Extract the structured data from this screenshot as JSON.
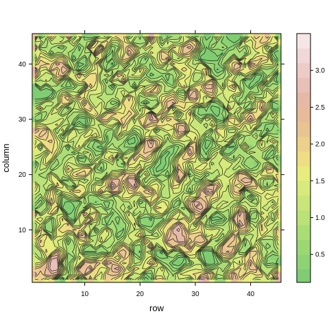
{
  "chart_data": {
    "type": "heatmap",
    "subtype": "contourplot",
    "xlabel": "row",
    "ylabel": "column",
    "xlim": [
      0.5,
      45.5
    ],
    "ylim": [
      0.5,
      45.5
    ],
    "x_ticks": [
      10,
      20,
      30,
      40
    ],
    "y_ticks": [
      10,
      20,
      30,
      40
    ],
    "x": [
      1,
      45
    ],
    "y": [
      1,
      45
    ],
    "value_range": [
      0.12,
      3.5
    ],
    "colorkey": {
      "ticks": [
        0.5,
        1.0,
        1.5,
        2.0,
        2.5,
        3.0
      ],
      "tick_labels": [
        "0.5",
        "1.0",
        "1.5",
        "2.0",
        "2.5",
        "3.0"
      ],
      "range": [
        0.12,
        3.5
      ],
      "levels": [
        0.12,
        0.3,
        0.5,
        0.7,
        0.9,
        1.1,
        1.3,
        1.5,
        1.7,
        1.9,
        2.1,
        2.3,
        2.5,
        2.7,
        2.9,
        3.1,
        3.3,
        3.5
      ],
      "colors": [
        "#7fcc72",
        "#8dd273",
        "#9bd874",
        "#aadd75",
        "#b9e277",
        "#c8e679",
        "#d7ea7b",
        "#e6ed7c",
        "#eedd83",
        "#ecd08b",
        "#e9c492",
        "#e7bb99",
        "#e6b8a6",
        "#e9c0b6",
        "#edcbc6",
        "#f1d8d6",
        "#f6e7e7",
        "#fbf7f7"
      ]
    },
    "note": "45x45 grid of noisy values rendered as filled contours with black contour lines"
  }
}
